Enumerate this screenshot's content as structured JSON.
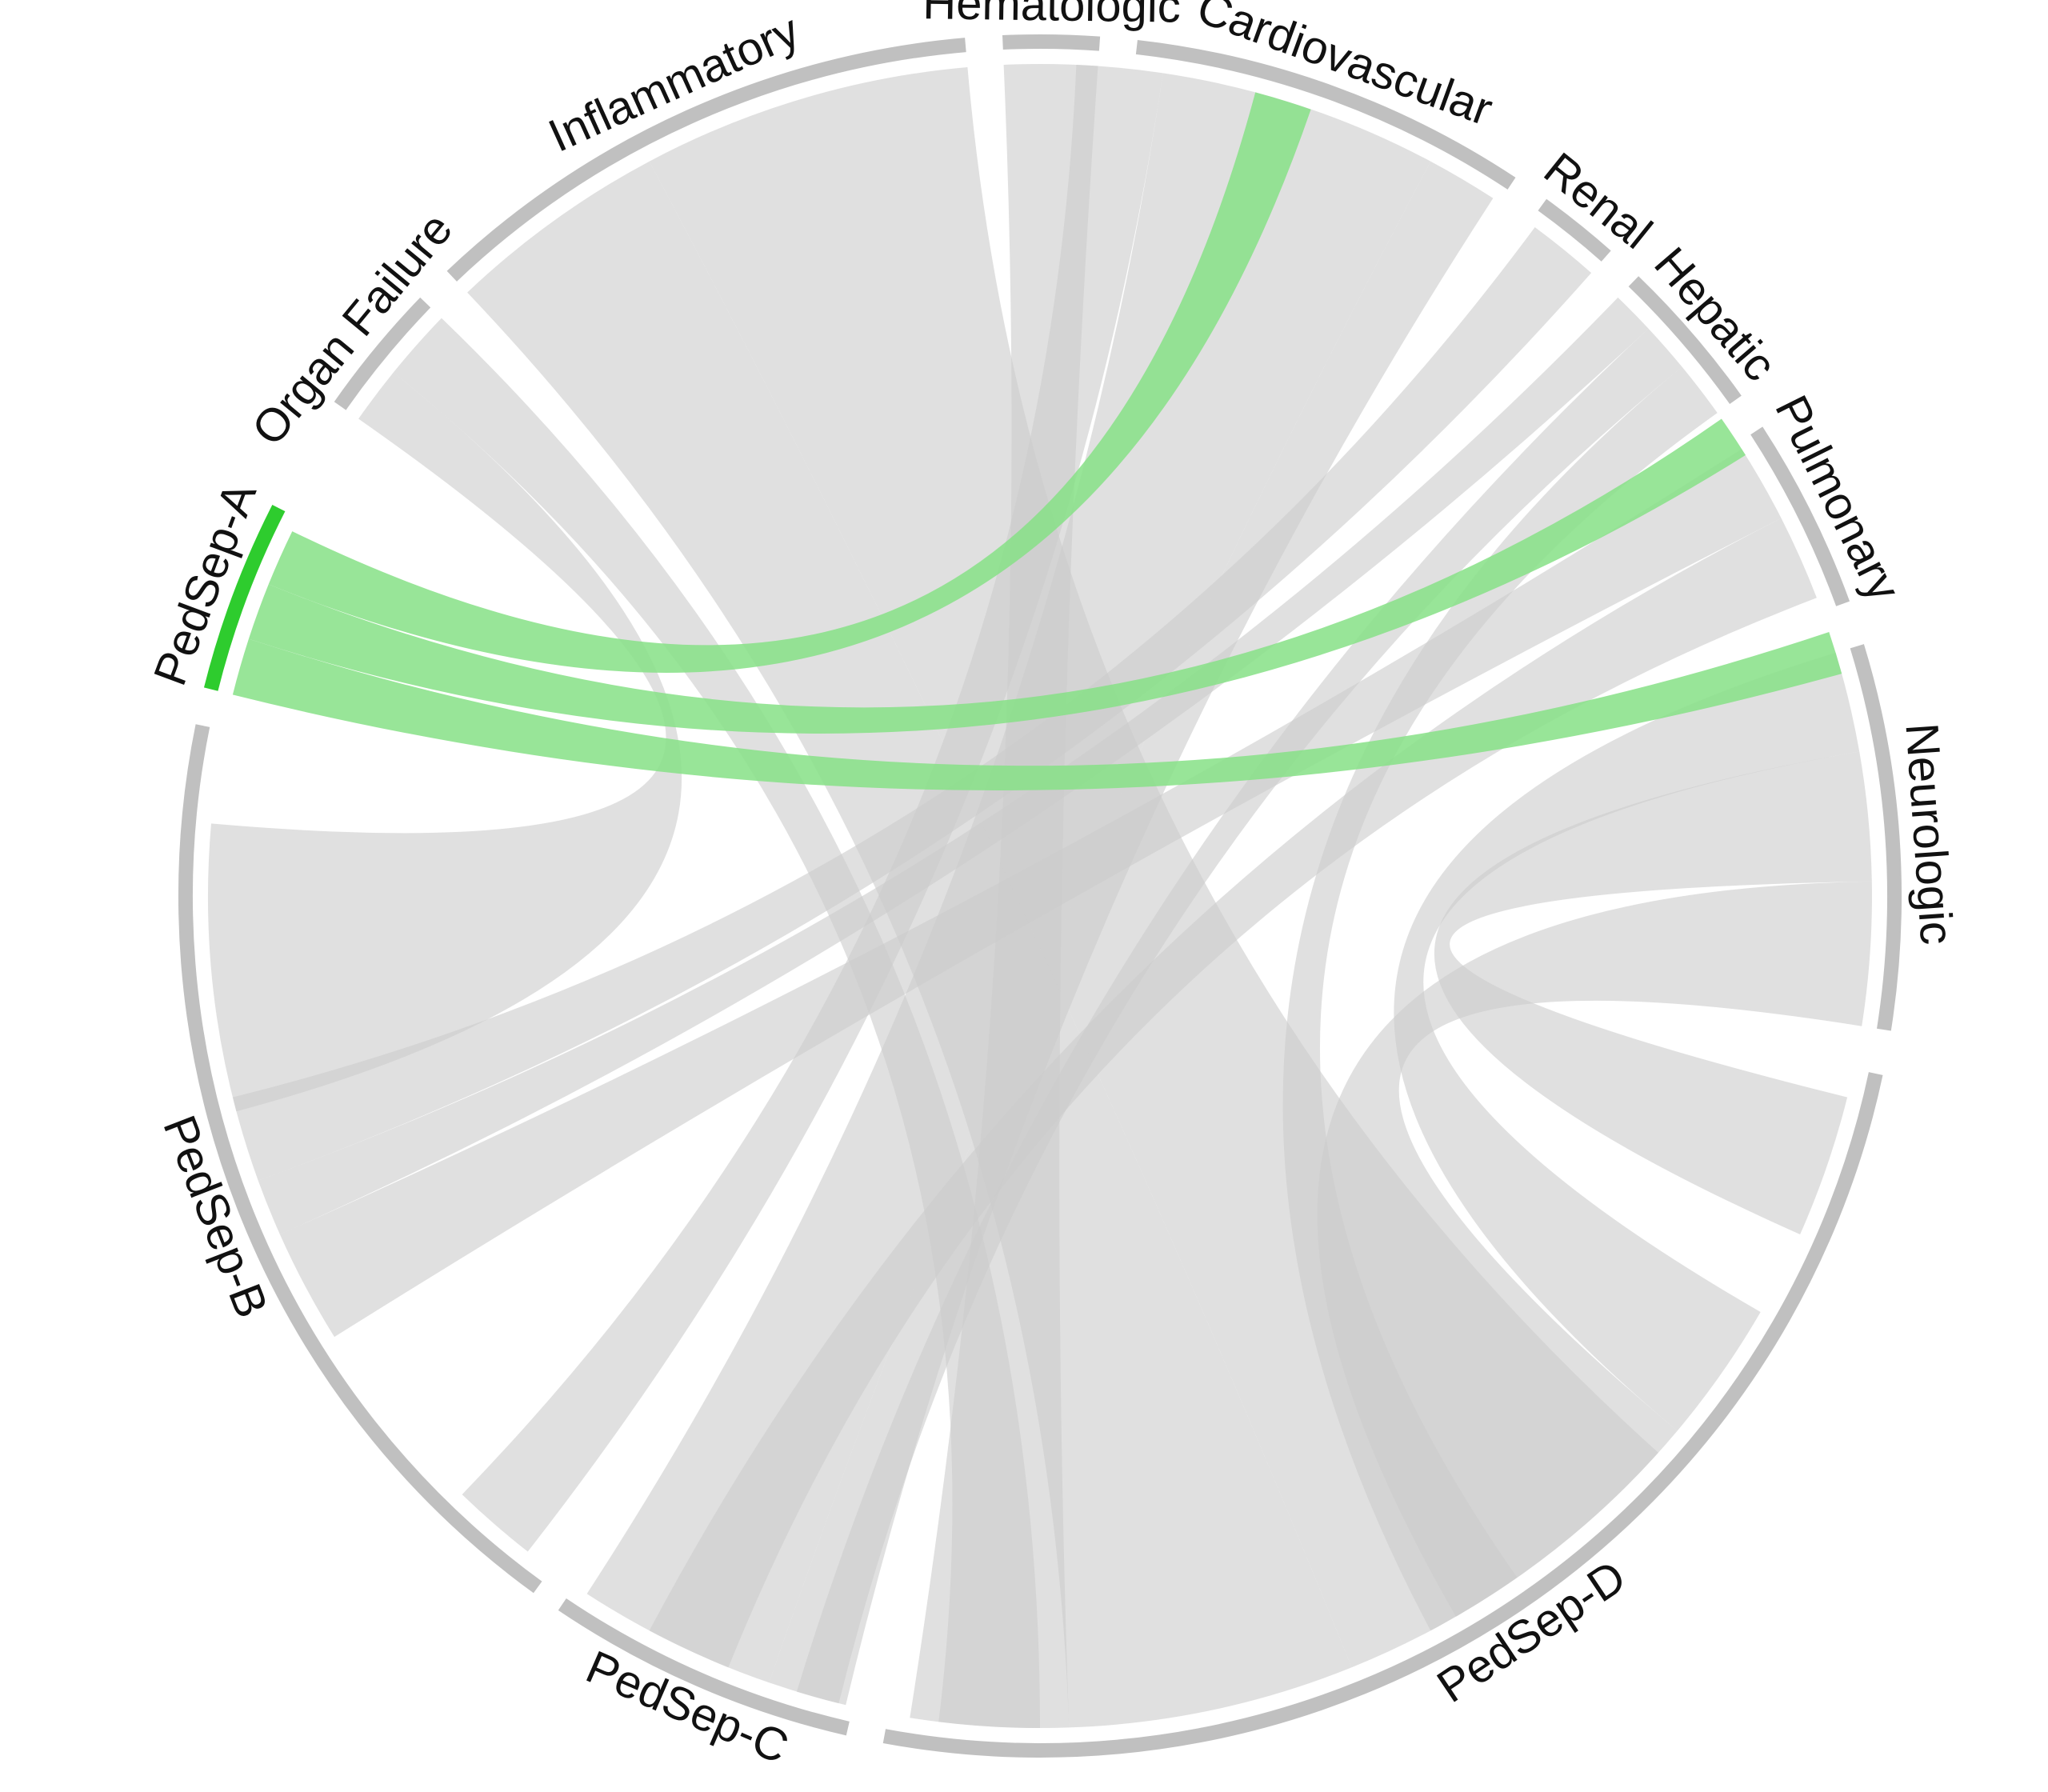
{
  "chart_data": {
    "type": "chord",
    "colors": {
      "segment_arc": "#c0c0c0",
      "highlight_arc": "#2ecc2e",
      "ribbon": "#cccccc",
      "highlight_ribbon": "#86e086"
    },
    "highlighted_segment": "PedSep-A",
    "segments": [
      {
        "id": "neurologic",
        "label": "Neurologic",
        "start": -9,
        "end": 17
      },
      {
        "id": "pulmonary",
        "label": "Pulmonary",
        "start": 20,
        "end": 33
      },
      {
        "id": "hepatic",
        "label": "Hepatic",
        "start": 35.5,
        "end": 46
      },
      {
        "id": "renal",
        "label": "Renal",
        "start": 48.5,
        "end": 54
      },
      {
        "id": "cardiovascular",
        "label": "Cardiovascular",
        "start": 56.5,
        "end": 83.5
      },
      {
        "id": "hematologic",
        "label": "Hematologic",
        "start": 86,
        "end": 92.5
      },
      {
        "id": "inflammatory",
        "label": "Inflammatory",
        "start": 95,
        "end": 133.5
      },
      {
        "id": "organ-failure",
        "label": "Organ Failure",
        "start": 136,
        "end": 145
      },
      {
        "id": "pedsep-a",
        "label": "PedSep-A",
        "start": 153,
        "end": 166
      },
      {
        "id": "pedsep-b",
        "label": "PedSep-B",
        "start": 168.5,
        "end": 234
      },
      {
        "id": "pedsep-c",
        "label": "PedSep-C",
        "start": 236,
        "end": 257
      },
      {
        "id": "pedsep-d",
        "label": "PedSep-D",
        "start": 259.5,
        "end": 348
      }
    ],
    "ribbons": [
      {
        "a": [
          81.5,
          87.5
        ],
        "b": [
          226,
          232
        ]
      },
      {
        "a": [
          62,
          81.5
        ],
        "b": [
          237,
          251
        ]
      },
      {
        "a": [
          57,
          62
        ],
        "b": [
          251,
          256.5
        ]
      },
      {
        "a": [
          48.5,
          53.5
        ],
        "b": [
          194,
          200
        ]
      },
      {
        "a": [
          43,
          46
        ],
        "b": [
          200,
          204
        ]
      },
      {
        "a": [
          39.5,
          43
        ],
        "b": [
          253,
          256
        ]
      },
      {
        "a": [
          35.5,
          39.5
        ],
        "b": [
          298,
          305
        ]
      },
      {
        "a": [
          27,
          32.5
        ],
        "b": [
          204,
          212
        ]
      },
      {
        "a": [
          21,
          27
        ],
        "b": [
          242,
          248
        ]
      },
      {
        "a": [
          10,
          17
        ],
        "b": [
          320,
          330
        ]
      },
      {
        "a": [
          1,
          10
        ],
        "b": [
          336,
          346
        ]
      },
      {
        "a": [
          -9,
          1
        ],
        "b": [
          300,
          320
        ]
      },
      {
        "a": [
          86,
          92.5
        ],
        "b": [
          261,
          272
        ]
      },
      {
        "a": [
          118,
          133.5
        ],
        "b": [
          272,
          292
        ]
      },
      {
        "a": [
          95,
          118
        ],
        "b": [
          292,
          318
        ]
      },
      {
        "a": [
          141,
          145
        ],
        "b": [
          175,
          195
        ]
      },
      {
        "a": [
          136,
          141
        ],
        "b": [
          263,
          270
        ]
      },
      {
        "a": [
          71,
          75
        ],
        "b": [
          154,
          158
        ],
        "highlight": true
      },
      {
        "a": [
          32,
          35
        ],
        "b": [
          158,
          162
        ],
        "highlight": true
      },
      {
        "a": [
          15.5,
          18.5
        ],
        "b": [
          162,
          166
        ],
        "highlight": true
      }
    ]
  }
}
